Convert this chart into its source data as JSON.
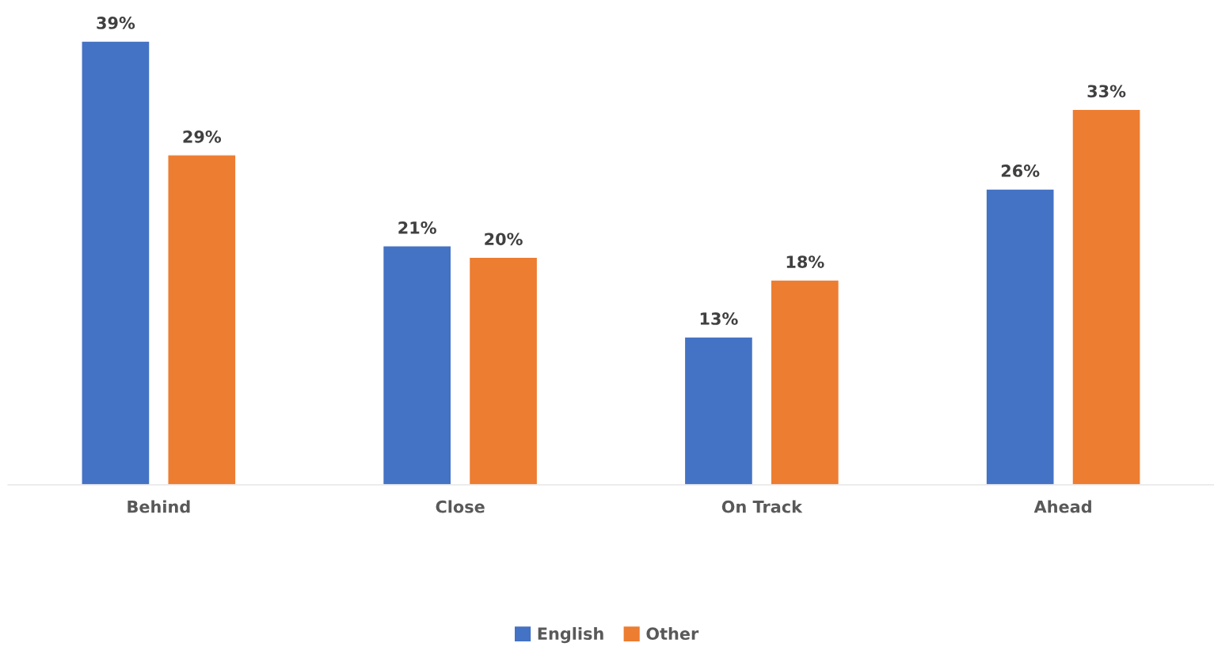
{
  "chart_data": {
    "type": "bar",
    "categories": [
      "Behind",
      "Close",
      "On Track",
      "Ahead"
    ],
    "series": [
      {
        "name": "English",
        "color": "#4472c4",
        "values": [
          39,
          21,
          13,
          26
        ],
        "value_labels": [
          "39%",
          "21%",
          "13%",
          "26%"
        ]
      },
      {
        "name": "Other",
        "color": "#ed7d31",
        "values": [
          29,
          20,
          18,
          33
        ],
        "value_labels": [
          "29%",
          "20%",
          "18%",
          "33%"
        ]
      }
    ],
    "legend": "bottom"
  }
}
